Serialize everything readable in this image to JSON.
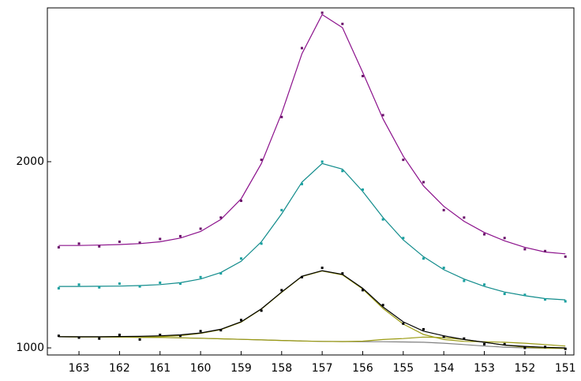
{
  "chart_data": {
    "type": "line",
    "x": [
      163.5,
      163,
      162.5,
      162,
      161.5,
      161,
      160.5,
      160,
      159.5,
      159,
      158.5,
      158,
      157.5,
      157,
      156.5,
      156,
      155.5,
      155,
      154.5,
      154,
      153.5,
      153,
      152.5,
      152,
      151.5,
      151
    ],
    "xlim": [
      163.78,
      150.79
    ],
    "ylim": [
      962,
      2826
    ],
    "xticks": [
      163,
      162,
      161,
      160,
      159,
      158,
      157,
      156,
      155,
      154,
      153,
      152,
      151
    ],
    "yticks": [
      1000,
      2000
    ],
    "series": [
      {
        "style": "line",
        "color": "#8b108b",
        "values": [
          1550,
          1550,
          1552,
          1555,
          1560,
          1570,
          1590,
          1625,
          1690,
          1800,
          1990,
          2260,
          2580,
          2790,
          2720,
          2480,
          2230,
          2030,
          1870,
          1760,
          1680,
          1620,
          1575,
          1540,
          1515,
          1505
        ]
      },
      {
        "style": "points",
        "color": "#6a106a",
        "values": [
          1540,
          1560,
          1545,
          1570,
          1565,
          1585,
          1600,
          1640,
          1700,
          1790,
          2010,
          2240,
          2610,
          2800,
          2740,
          2460,
          2250,
          2010,
          1890,
          1740,
          1700,
          1610,
          1590,
          1530,
          1520,
          1490
        ]
      },
      {
        "style": "line",
        "color": "#108b8b",
        "values": [
          1330,
          1330,
          1331,
          1332,
          1335,
          1340,
          1350,
          1370,
          1405,
          1465,
          1570,
          1720,
          1890,
          1990,
          1960,
          1840,
          1700,
          1580,
          1490,
          1420,
          1370,
          1330,
          1300,
          1280,
          1265,
          1258
        ]
      },
      {
        "style": "points",
        "color": "#17a0a0",
        "values": [
          1320,
          1340,
          1325,
          1345,
          1330,
          1350,
          1345,
          1380,
          1400,
          1480,
          1560,
          1740,
          1880,
          2000,
          1950,
          1850,
          1690,
          1590,
          1480,
          1430,
          1360,
          1340,
          1290,
          1285,
          1260,
          1250
        ]
      },
      {
        "style": "line",
        "color": "#808080",
        "values": [
          1060,
          1059,
          1059,
          1058,
          1057,
          1056,
          1054,
          1052,
          1049,
          1046,
          1043,
          1040,
          1037,
          1035,
          1034,
          1033,
          1033,
          1032,
          1030,
          1025,
          1018,
          1010,
          1004,
          1000,
          998,
          997
        ]
      },
      {
        "style": "line",
        "color": "#9a9a10",
        "values": [
          1060,
          1059,
          1059,
          1058,
          1058,
          1060,
          1066,
          1078,
          1098,
          1138,
          1208,
          1298,
          1383,
          1413,
          1392,
          1316,
          1212,
          1128,
          1072,
          1045,
          1035,
          1033,
          1030,
          1025,
          1018,
          1010
        ]
      },
      {
        "style": "line",
        "color": "#9a9a10",
        "values": [
          1060,
          1059,
          1059,
          1058,
          1057,
          1056,
          1054,
          1052,
          1049,
          1046,
          1043,
          1040,
          1037,
          1035,
          1034,
          1036,
          1045,
          1050,
          1058,
          1055,
          1045,
          1030,
          1015,
          1004,
          999,
          997
        ]
      },
      {
        "style": "line",
        "color": "#000000",
        "values": [
          1060,
          1060,
          1060,
          1061,
          1062,
          1065,
          1070,
          1080,
          1100,
          1140,
          1210,
          1300,
          1385,
          1415,
          1395,
          1320,
          1220,
          1140,
          1090,
          1065,
          1045,
          1030,
          1015,
          1008,
          1003,
          1000
        ]
      },
      {
        "style": "points",
        "color": "#000000",
        "values": [
          1065,
          1055,
          1050,
          1070,
          1045,
          1070,
          1065,
          1090,
          1095,
          1150,
          1200,
          1310,
          1380,
          1430,
          1400,
          1310,
          1230,
          1130,
          1100,
          1060,
          1050,
          1020,
          1020,
          1000,
          1005,
          995
        ]
      }
    ]
  }
}
